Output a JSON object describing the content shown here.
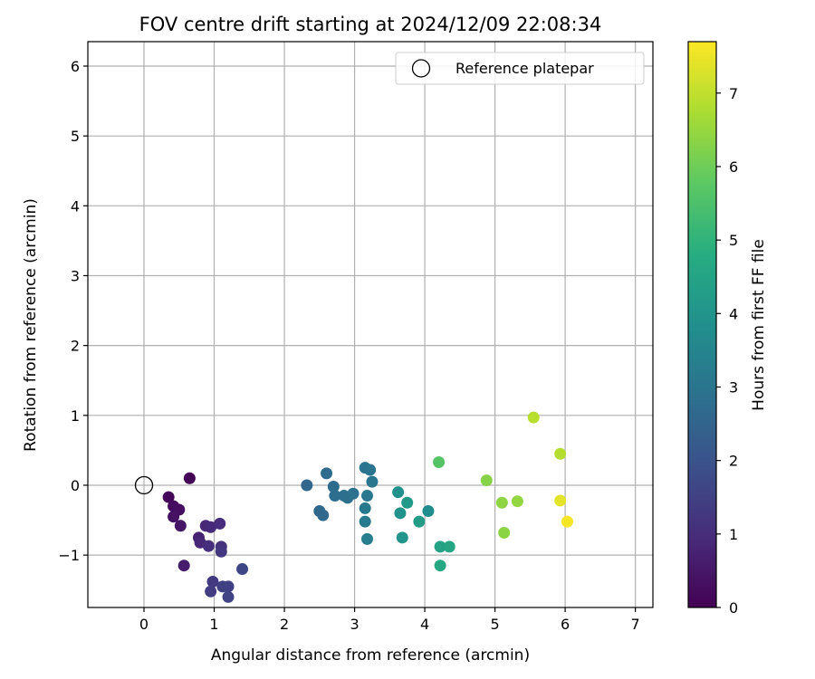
{
  "chart_data": {
    "type": "scatter",
    "title": "FOV centre drift starting at 2024/12/09 22:08:34",
    "xlabel": "Angular distance from reference (arcmin)",
    "ylabel": "Rotation from reference (arcmin)",
    "xlim": [
      -0.8,
      7.25
    ],
    "ylim": [
      -1.75,
      6.35
    ],
    "xticks": [
      0,
      1,
      2,
      3,
      4,
      5,
      6,
      7
    ],
    "yticks": [
      -1,
      0,
      1,
      2,
      3,
      4,
      5,
      6
    ],
    "xtick_labels": [
      "0",
      "1",
      "2",
      "3",
      "4",
      "5",
      "6",
      "7"
    ],
    "ytick_labels": [
      "−1",
      "0",
      "1",
      "2",
      "3",
      "4",
      "5",
      "6"
    ],
    "grid": true,
    "legend": {
      "position": "top-right",
      "entries": [
        "Reference platepar"
      ]
    },
    "reference_point": {
      "name": "Reference platepar",
      "x": 0,
      "y": 0
    },
    "colorbar": {
      "label": "Hours from first FF file",
      "colormap": "viridis",
      "range": [
        0,
        7.7
      ],
      "ticks": [
        0,
        1,
        2,
        3,
        4,
        5,
        6,
        7
      ],
      "tick_labels": [
        "0",
        "1",
        "2",
        "3",
        "4",
        "5",
        "6",
        "7"
      ]
    },
    "points": [
      {
        "x": 0.65,
        "y": 0.1,
        "hours": 0.05
      },
      {
        "x": 0.35,
        "y": -0.17,
        "hours": 0.15
      },
      {
        "x": 0.42,
        "y": -0.3,
        "hours": 0.25
      },
      {
        "x": 0.5,
        "y": -0.35,
        "hours": 0.3
      },
      {
        "x": 0.42,
        "y": -0.45,
        "hours": 0.35
      },
      {
        "x": 0.52,
        "y": -0.58,
        "hours": 0.45
      },
      {
        "x": 0.57,
        "y": -1.15,
        "hours": 0.6
      },
      {
        "x": 0.78,
        "y": -0.75,
        "hours": 0.75
      },
      {
        "x": 0.8,
        "y": -0.82,
        "hours": 0.85
      },
      {
        "x": 0.88,
        "y": -0.58,
        "hours": 0.9
      },
      {
        "x": 0.95,
        "y": -0.6,
        "hours": 0.95
      },
      {
        "x": 1.08,
        "y": -0.55,
        "hours": 1.0
      },
      {
        "x": 0.92,
        "y": -0.87,
        "hours": 1.05
      },
      {
        "x": 1.1,
        "y": -0.88,
        "hours": 1.15
      },
      {
        "x": 1.1,
        "y": -0.95,
        "hours": 1.25
      },
      {
        "x": 0.98,
        "y": -1.38,
        "hours": 1.3
      },
      {
        "x": 0.95,
        "y": -1.52,
        "hours": 1.4
      },
      {
        "x": 1.2,
        "y": -1.45,
        "hours": 1.45
      },
      {
        "x": 1.12,
        "y": -1.45,
        "hours": 1.5
      },
      {
        "x": 1.2,
        "y": -1.6,
        "hours": 1.55
      },
      {
        "x": 1.4,
        "y": -1.2,
        "hours": 1.65
      },
      {
        "x": 2.32,
        "y": 0.0,
        "hours": 2.55
      },
      {
        "x": 2.5,
        "y": -0.37,
        "hours": 2.6
      },
      {
        "x": 2.55,
        "y": -0.43,
        "hours": 2.65
      },
      {
        "x": 2.6,
        "y": 0.17,
        "hours": 2.7
      },
      {
        "x": 2.7,
        "y": -0.02,
        "hours": 2.75
      },
      {
        "x": 2.72,
        "y": -0.15,
        "hours": 2.8
      },
      {
        "x": 2.85,
        "y": -0.15,
        "hours": 2.82
      },
      {
        "x": 2.9,
        "y": -0.18,
        "hours": 2.85
      },
      {
        "x": 2.98,
        "y": -0.12,
        "hours": 2.88
      },
      {
        "x": 3.15,
        "y": 0.25,
        "hours": 2.95
      },
      {
        "x": 3.22,
        "y": 0.22,
        "hours": 3.0
      },
      {
        "x": 3.25,
        "y": 0.05,
        "hours": 3.05
      },
      {
        "x": 3.18,
        "y": -0.15,
        "hours": 3.1
      },
      {
        "x": 3.15,
        "y": -0.33,
        "hours": 3.15
      },
      {
        "x": 3.15,
        "y": -0.52,
        "hours": 3.2
      },
      {
        "x": 3.18,
        "y": -0.77,
        "hours": 3.25
      },
      {
        "x": 3.62,
        "y": -0.1,
        "hours": 3.85
      },
      {
        "x": 3.65,
        "y": -0.4,
        "hours": 3.9
      },
      {
        "x": 3.68,
        "y": -0.75,
        "hours": 4.05
      },
      {
        "x": 3.75,
        "y": -0.25,
        "hours": 4.15
      },
      {
        "x": 3.92,
        "y": -0.52,
        "hours": 4.25
      },
      {
        "x": 4.05,
        "y": -0.37,
        "hours": 3.75
      },
      {
        "x": 4.22,
        "y": -0.88,
        "hours": 4.45
      },
      {
        "x": 4.35,
        "y": -0.88,
        "hours": 4.55
      },
      {
        "x": 4.22,
        "y": -1.15,
        "hours": 4.65
      },
      {
        "x": 4.2,
        "y": 0.33,
        "hours": 5.65
      },
      {
        "x": 4.88,
        "y": 0.07,
        "hours": 6.3
      },
      {
        "x": 5.1,
        "y": -0.25,
        "hours": 6.4
      },
      {
        "x": 5.32,
        "y": -0.23,
        "hours": 6.45
      },
      {
        "x": 5.13,
        "y": -0.68,
        "hours": 6.35
      },
      {
        "x": 5.55,
        "y": 0.97,
        "hours": 6.9
      },
      {
        "x": 5.93,
        "y": 0.45,
        "hours": 6.85
      },
      {
        "x": 5.93,
        "y": -0.22,
        "hours": 7.4
      },
      {
        "x": 6.03,
        "y": -0.52,
        "hours": 7.6
      }
    ]
  }
}
